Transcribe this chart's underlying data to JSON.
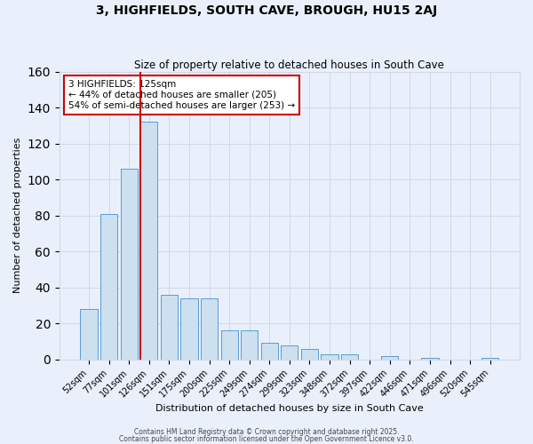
{
  "title": "3, HIGHFIELDS, SOUTH CAVE, BROUGH, HU15 2AJ",
  "subtitle": "Size of property relative to detached houses in South Cave",
  "xlabel": "Distribution of detached houses by size in South Cave",
  "ylabel": "Number of detached properties",
  "categories": [
    "52sqm",
    "77sqm",
    "101sqm",
    "126sqm",
    "151sqm",
    "175sqm",
    "200sqm",
    "225sqm",
    "249sqm",
    "274sqm",
    "299sqm",
    "323sqm",
    "348sqm",
    "372sqm",
    "397sqm",
    "422sqm",
    "446sqm",
    "471sqm",
    "496sqm",
    "520sqm",
    "545sqm"
  ],
  "bar_values": [
    28,
    81,
    106,
    132,
    36,
    34,
    34,
    16,
    16,
    9,
    8,
    6,
    3,
    3,
    0,
    2,
    0,
    1,
    0,
    0,
    1
  ],
  "bar_color": "#cce0f0",
  "bar_edge_color": "#5b9bd5",
  "red_line_index": 3,
  "annotation_text": "3 HIGHFIELDS: 125sqm\n← 44% of detached houses are smaller (205)\n54% of semi-detached houses are larger (253) →",
  "annotation_box_color": "white",
  "annotation_box_edge_color": "#cc0000",
  "ylim": [
    0,
    160
  ],
  "yticks": [
    0,
    20,
    40,
    60,
    80,
    100,
    120,
    140,
    160
  ],
  "grid_color": "#d0d8e8",
  "bg_color": "#eaf0fb",
  "footer1": "Contains HM Land Registry data © Crown copyright and database right 2025.",
  "footer2": "Contains public sector information licensed under the Open Government Licence v3.0."
}
